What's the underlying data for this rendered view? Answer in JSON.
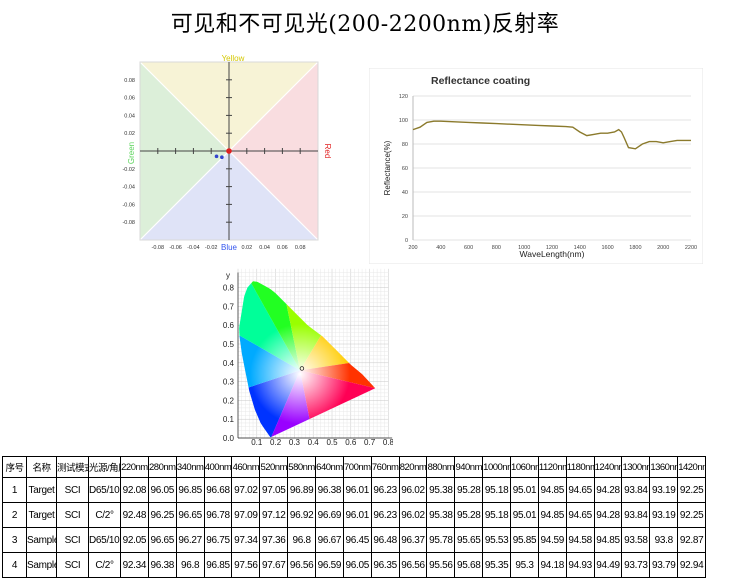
{
  "page_title": "可见和不可见光(200-2200nm)反射率",
  "chart_data": [
    {
      "type": "scatter",
      "title": "",
      "axis_labels": {
        "top": "Yellow",
        "bottom": "Blue",
        "left": "Green",
        "right": "Red"
      },
      "colors": {
        "yellow": "#d4c800",
        "blue": "#3355ee",
        "green": "#5cd45c",
        "red": "#e02020",
        "quad_yellow": "#f7f3d6",
        "quad_red": "#f9dde0",
        "quad_blue": "#dfe3f7",
        "quad_green": "#dcefd9"
      },
      "xlim": [
        -0.1,
        0.1
      ],
      "ylim": [
        -0.1,
        0.1
      ],
      "x_ticks": [
        "-0.08",
        "-0.06",
        "-0.04",
        "-0.02",
        "0.02",
        "0.04",
        "0.06",
        "0.08"
      ],
      "y_ticks": [
        "0.08",
        "0.06",
        "0.04",
        "0.02",
        "-0.02",
        "-0.04",
        "-0.06",
        "-0.08"
      ],
      "points": [
        {
          "x": 0.0,
          "y": 0.0,
          "color": "#e02020"
        },
        {
          "x": -0.014,
          "y": -0.006,
          "color": "#3344cc"
        },
        {
          "x": -0.008,
          "y": -0.007,
          "color": "#3344cc"
        }
      ]
    },
    {
      "type": "line",
      "title": "Reflectance coating",
      "xlabel": "WaveLength(nm)",
      "ylabel": "Reflectance(%)",
      "xlim": [
        200,
        2200
      ],
      "ylim": [
        0,
        120
      ],
      "x_ticks": [
        "200",
        "400",
        "600",
        "800",
        "1000",
        "1200",
        "1400",
        "1600",
        "1800",
        "2000",
        "2200"
      ],
      "y_ticks": [
        "0",
        "20",
        "40",
        "60",
        "80",
        "100",
        "120"
      ],
      "line_color": "#8b7a2c",
      "series": [
        {
          "x": [
            200,
            250,
            300,
            350,
            400,
            500,
            600,
            700,
            800,
            900,
            1000,
            1100,
            1200,
            1300,
            1350,
            1400,
            1450,
            1500,
            1550,
            1600,
            1650,
            1680,
            1700,
            1720,
            1750,
            1800,
            1850,
            1900,
            1950,
            2000,
            2050,
            2100,
            2200
          ],
          "y": [
            92,
            94,
            98,
            99,
            99,
            98.5,
            98,
            97.5,
            97,
            96.5,
            96,
            95.5,
            95,
            94.5,
            94,
            90,
            87,
            88,
            89,
            89,
            90,
            92,
            90,
            85,
            77,
            76,
            80,
            82,
            82,
            81,
            82,
            83,
            83
          ]
        }
      ]
    },
    {
      "type": "scatter",
      "title": "",
      "xlabel": "x",
      "ylabel": "y",
      "xlim": [
        0,
        0.8
      ],
      "ylim": [
        0,
        0.9
      ],
      "x_ticks": [
        "0.1",
        "0.2",
        "0.3",
        "0.4",
        "0.5",
        "0.6",
        "0.7",
        "0.8"
      ],
      "y_ticks": [
        "0.0",
        "0.1",
        "0.2",
        "0.3",
        "0.4",
        "0.5",
        "0.6",
        "0.7",
        "0.8"
      ],
      "points": [
        {
          "x": 0.34,
          "y": 0.37
        }
      ]
    }
  ],
  "table": {
    "headers": [
      "序号",
      "名称",
      "测试模式",
      "光源/角度",
      "220nm",
      "280nm",
      "340nm",
      "400nm",
      "460nm",
      "520nm",
      "580nm",
      "640nm",
      "700nm",
      "760nm",
      "820nm",
      "880nm",
      "940nm",
      "1000nm",
      "1060nm",
      "1120nm",
      "1180nm",
      "1240nm",
      "1300nm",
      "1360nm",
      "1420nm"
    ],
    "rows": [
      [
        "1",
        "Target",
        "SCI",
        "D65/10°",
        "92.08",
        "96.05",
        "96.85",
        "96.68",
        "97.02",
        "97.05",
        "96.89",
        "96.38",
        "96.01",
        "96.23",
        "96.02",
        "95.38",
        "95.28",
        "95.18",
        "95.01",
        "94.85",
        "94.65",
        "94.28",
        "93.84",
        "93.19",
        "92.25"
      ],
      [
        "2",
        "Target",
        "SCI",
        "C/2°",
        "92.48",
        "96.25",
        "96.65",
        "96.78",
        "97.09",
        "97.12",
        "96.92",
        "96.69",
        "96.01",
        "96.23",
        "96.02",
        "95.38",
        "95.28",
        "95.18",
        "95.01",
        "94.85",
        "94.65",
        "94.28",
        "93.84",
        "93.19",
        "92.25"
      ],
      [
        "3",
        "Sample",
        "SCI",
        "D65/10°",
        "92.05",
        "96.65",
        "96.27",
        "96.75",
        "97.34",
        "97.36",
        "96.8",
        "96.67",
        "96.45",
        "96.48",
        "96.37",
        "95.78",
        "95.65",
        "95.53",
        "95.85",
        "94.59",
        "94.58",
        "94.85",
        "93.58",
        "93.8",
        "92.87"
      ],
      [
        "4",
        "Sample",
        "SCI",
        "C/2°",
        "92.34",
        "96.38",
        "96.8",
        "96.85",
        "97.56",
        "97.67",
        "96.56",
        "96.59",
        "96.05",
        "96.35",
        "96.56",
        "95.56",
        "95.68",
        "95.35",
        "95.3",
        "94.18",
        "94.93",
        "94.49",
        "93.73",
        "93.79",
        "92.94"
      ]
    ]
  }
}
